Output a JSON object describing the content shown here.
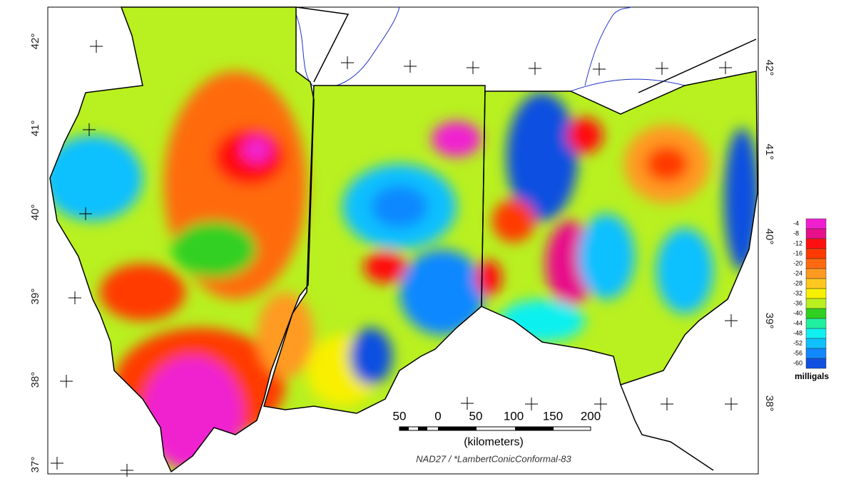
{
  "map": {
    "lat_labels_left": [
      "42°",
      "41°",
      "40°",
      "39°",
      "38°",
      "37°"
    ],
    "lat_labels_right": [
      "42°",
      "41°",
      "40°",
      "39°",
      "38°"
    ],
    "scale_bar": {
      "labels": [
        "50",
        "0",
        "50",
        "100",
        "150",
        "200"
      ],
      "unit": "(kilometers)"
    },
    "projection": "NAD27 / *LambertConicConformal-83",
    "legend": {
      "title": "milligals",
      "labels": [
        "-4",
        "-8",
        "-12",
        "-16",
        "-20",
        "-24",
        "-28",
        "-32",
        "-36",
        "-40",
        "-44",
        "-48",
        "-52",
        "-56",
        "-60"
      ],
      "colors": [
        "#f020d0",
        "#e8108a",
        "#ff1010",
        "#ff3a00",
        "#ff6a10",
        "#ff9a20",
        "#ffc820",
        "#f8f000",
        "#b8f020",
        "#30d020",
        "#20f0a0",
        "#10f0f0",
        "#10c0ff",
        "#1088ff",
        "#1050e0"
      ]
    }
  }
}
